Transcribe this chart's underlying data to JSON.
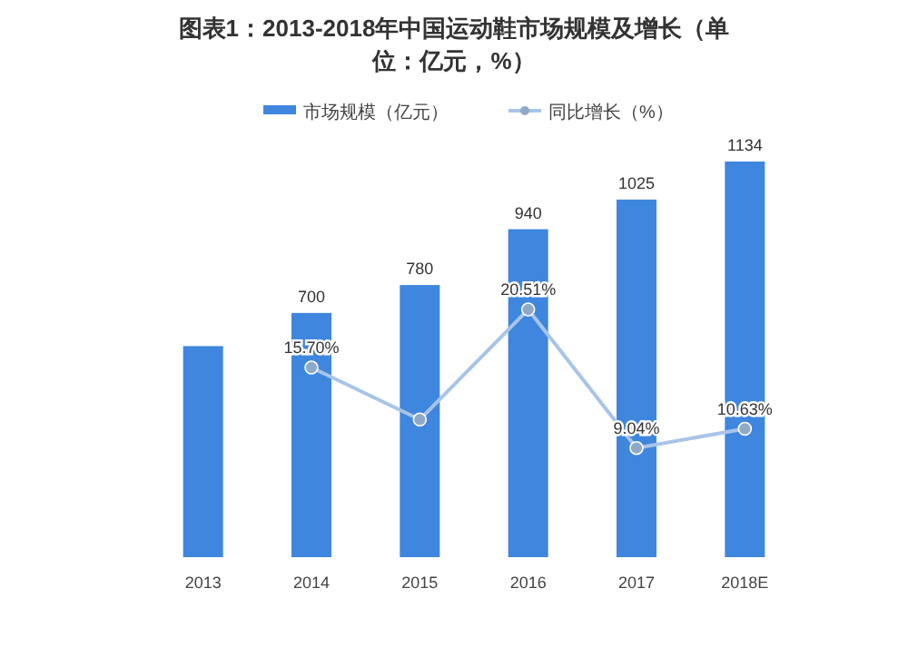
{
  "chart_data": {
    "type": "bar",
    "title": "图表1：2013-2018年中国运动鞋市场规模及增长（单位：亿元，%）",
    "categories": [
      "2013",
      "2014",
      "2015",
      "2016",
      "2017",
      "2018E"
    ],
    "legend": "top",
    "series": [
      {
        "name": "市场规模（亿元）",
        "color": "#3f86de",
        "values": [
          605,
          700,
          780,
          940,
          1025,
          1134
        ],
        "value_labels": [
          null,
          "700",
          "780",
          "940",
          "1025",
          "1134"
        ]
      },
      {
        "name": "同比增长（%）",
        "type": "line",
        "axis": "y2",
        "color": "#a9c4e8",
        "marker": "circle",
        "values": [
          null,
          15.7,
          11.4,
          20.51,
          9.04,
          10.63
        ],
        "value_labels": [
          null,
          "15.70%",
          null,
          "20.51%",
          "9.04%",
          "10.63%"
        ]
      }
    ]
  }
}
